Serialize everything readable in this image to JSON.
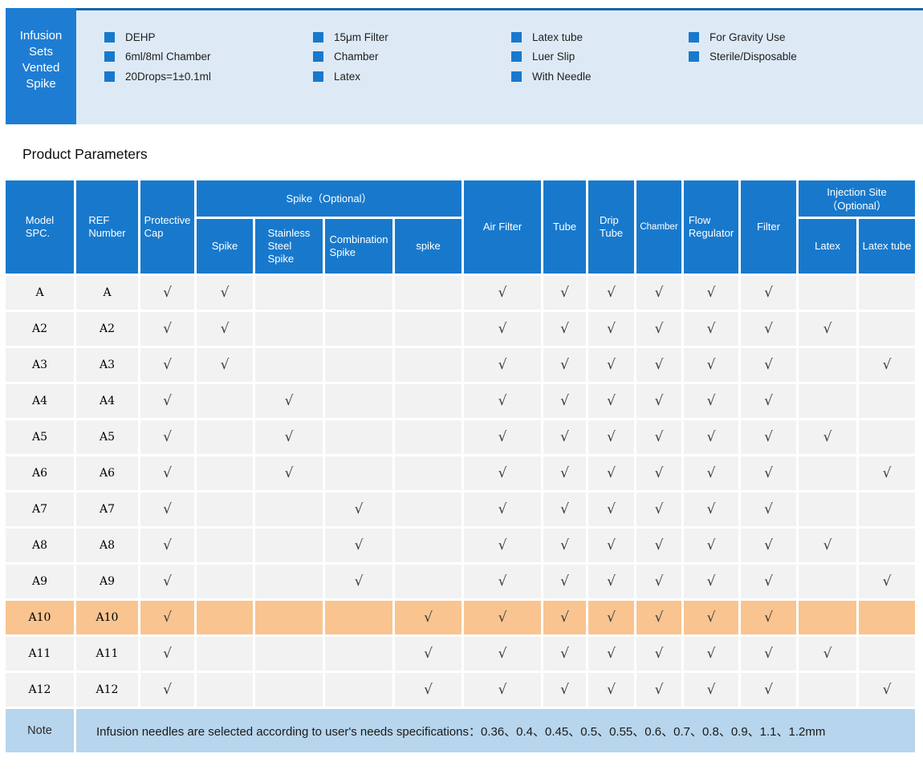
{
  "colors": {
    "banner_box_blue": "#1e7dd3",
    "banner_panel_bg": "#ddeaf6",
    "banner_top_line": "#1565ad",
    "bullet_blue": "#1879cc",
    "header_blue": "#1879cc",
    "row_gray": "#f2f2f2",
    "highlight_orange": "#f9c48f",
    "note_blue": "#b7d5ec",
    "check_color": "#3b3b3b"
  },
  "banner": {
    "title_lines": [
      "Infusion",
      "Sets",
      "Vented",
      "Spike"
    ],
    "feature_columns": [
      [
        "DEHP",
        "6ml/8ml Chamber",
        "20Drops=1±0.1ml"
      ],
      [
        "15μm Filter",
        "Chamber",
        "Latex"
      ],
      [
        "Latex tube",
        "Luer Slip",
        "With Needle"
      ],
      [
        "For Gravity Use",
        "Sterile/Disposable"
      ]
    ]
  },
  "section_title": "Product Parameters",
  "table": {
    "check_glyph": "√",
    "header": {
      "model": "Model\nSPC.",
      "ref": "REF\nNumber",
      "protective_cap": "Protective\nCap",
      "spike_group": "Spike（Optional）",
      "spike": "Spike",
      "stainless": "Stainless\nSteel\nSpike",
      "combination": "Combination\nSpike",
      "spike_lower": "spike",
      "air_filter": "Air Filter",
      "tube": "Tube",
      "drip_tube": "Drip\nTube",
      "chamber": "Chamber",
      "flow_regulator": "Flow\nRegulator",
      "filter": "Filter",
      "injection_group": "Injection Site\n（Optional）",
      "latex": "Latex",
      "latex_tube": "Latex tube"
    },
    "check_columns": [
      "protective_cap",
      "spike",
      "stainless",
      "combination",
      "spike_lower",
      "air_filter",
      "tube",
      "drip_tube",
      "chamber",
      "flow_regulator",
      "filter",
      "latex",
      "latex_tube"
    ],
    "rows": [
      {
        "model": "A",
        "ref": "A",
        "highlighted": false,
        "checks": [
          1,
          1,
          0,
          0,
          0,
          1,
          1,
          1,
          1,
          1,
          1,
          0,
          0
        ]
      },
      {
        "model": "A2",
        "ref": "A2",
        "highlighted": false,
        "checks": [
          1,
          1,
          0,
          0,
          0,
          1,
          1,
          1,
          1,
          1,
          1,
          1,
          0
        ]
      },
      {
        "model": "A3",
        "ref": "A3",
        "highlighted": false,
        "checks": [
          1,
          1,
          0,
          0,
          0,
          1,
          1,
          1,
          1,
          1,
          1,
          0,
          1
        ]
      },
      {
        "model": "A4",
        "ref": "A4",
        "highlighted": false,
        "checks": [
          1,
          0,
          1,
          0,
          0,
          1,
          1,
          1,
          1,
          1,
          1,
          0,
          0
        ]
      },
      {
        "model": "A5",
        "ref": "A5",
        "highlighted": false,
        "checks": [
          1,
          0,
          1,
          0,
          0,
          1,
          1,
          1,
          1,
          1,
          1,
          1,
          0
        ]
      },
      {
        "model": "A6",
        "ref": "A6",
        "highlighted": false,
        "checks": [
          1,
          0,
          1,
          0,
          0,
          1,
          1,
          1,
          1,
          1,
          1,
          0,
          1
        ]
      },
      {
        "model": "A7",
        "ref": "A7",
        "highlighted": false,
        "checks": [
          1,
          0,
          0,
          1,
          0,
          1,
          1,
          1,
          1,
          1,
          1,
          0,
          0
        ]
      },
      {
        "model": "A8",
        "ref": "A8",
        "highlighted": false,
        "checks": [
          1,
          0,
          0,
          1,
          0,
          1,
          1,
          1,
          1,
          1,
          1,
          1,
          0
        ]
      },
      {
        "model": "A9",
        "ref": "A9",
        "highlighted": false,
        "checks": [
          1,
          0,
          0,
          1,
          0,
          1,
          1,
          1,
          1,
          1,
          1,
          0,
          1
        ]
      },
      {
        "model": "A10",
        "ref": "A10",
        "highlighted": true,
        "checks": [
          1,
          0,
          0,
          0,
          1,
          1,
          1,
          1,
          1,
          1,
          1,
          0,
          0
        ]
      },
      {
        "model": "A11",
        "ref": "A11",
        "highlighted": false,
        "checks": [
          1,
          0,
          0,
          0,
          1,
          1,
          1,
          1,
          1,
          1,
          1,
          1,
          0
        ]
      },
      {
        "model": "A12",
        "ref": "A12",
        "highlighted": false,
        "checks": [
          1,
          0,
          0,
          0,
          1,
          1,
          1,
          1,
          1,
          1,
          1,
          0,
          1
        ]
      }
    ]
  },
  "note": {
    "label": "Note",
    "text": "Infusion needles are selected according to user's needs specifications：0.36、0.4、0.45、0.5、0.55、0.6、0.7、0.8、0.9、1.1、1.2mm"
  }
}
